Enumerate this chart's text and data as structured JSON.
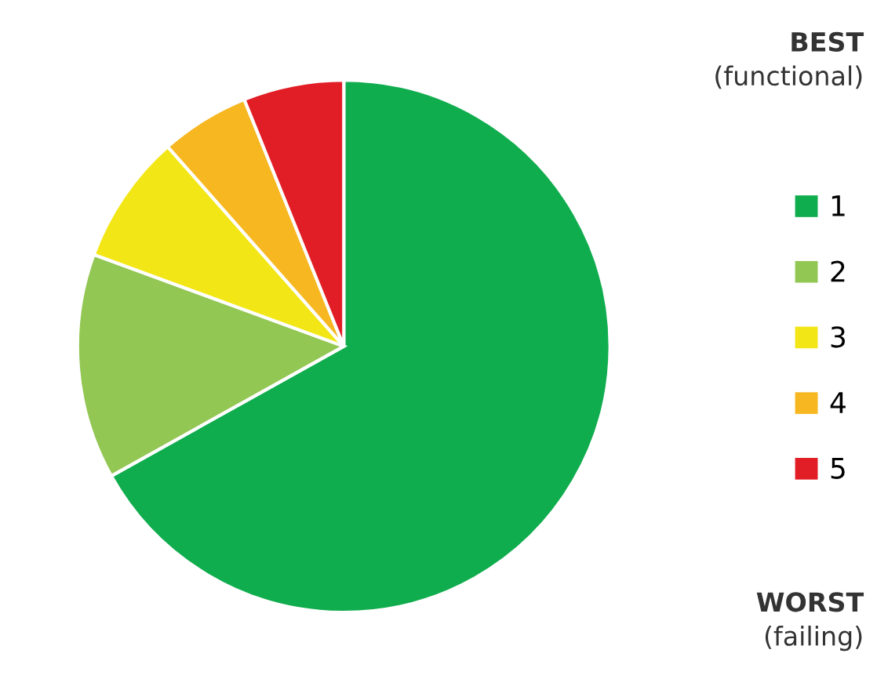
{
  "chart_data": {
    "type": "pie",
    "categories": [
      "1",
      "2",
      "3",
      "4",
      "5"
    ],
    "values": [
      66.9,
      13.7,
      7.9,
      5.4,
      6.1
    ],
    "colors": [
      "#10ad4e",
      "#93c754",
      "#f2e616",
      "#f7b720",
      "#e11d25"
    ],
    "legend": "right",
    "annotations": [
      "BEST",
      "(functional)",
      "WORST",
      "(failing)"
    ]
  }
}
